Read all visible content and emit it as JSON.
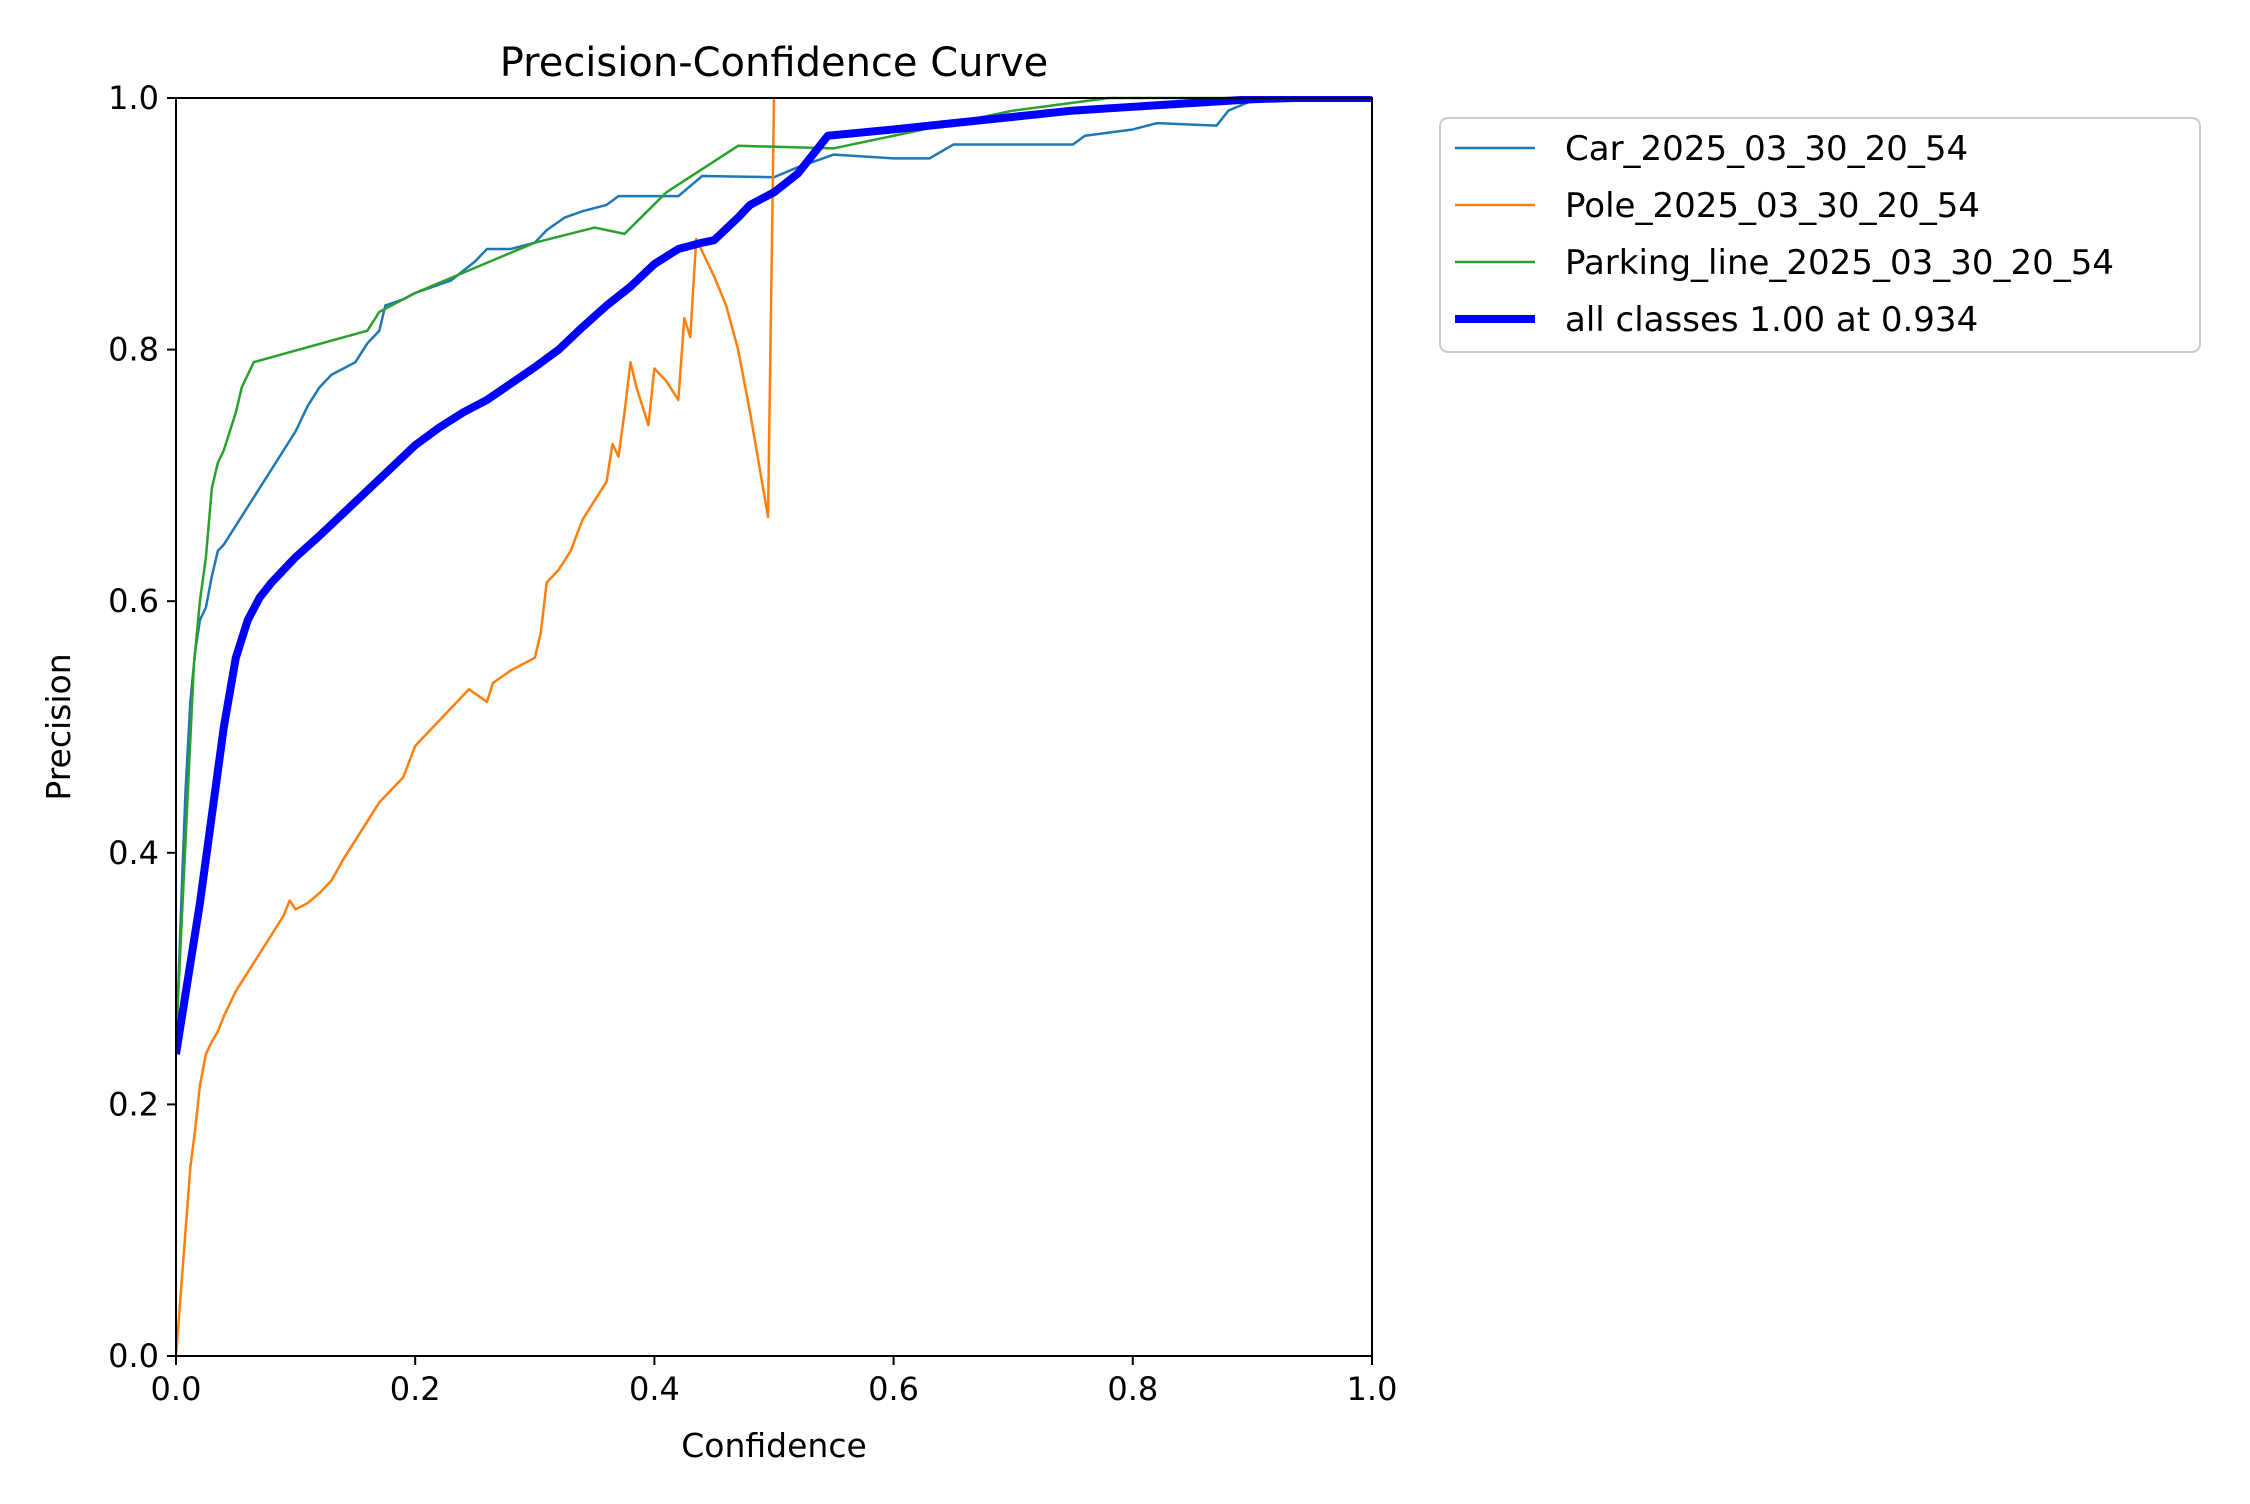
{
  "chart_data": {
    "type": "line",
    "title": "Precision-Confidence Curve",
    "xlabel": "Confidence",
    "ylabel": "Precision",
    "xlim": [
      0,
      1
    ],
    "ylim": [
      0,
      1
    ],
    "x_ticks": [
      "0.0",
      "0.2",
      "0.4",
      "0.6",
      "0.8",
      "1.0"
    ],
    "y_ticks": [
      "0.0",
      "0.2",
      "0.4",
      "0.6",
      "0.8",
      "1.0"
    ],
    "grid": false,
    "legend_position": "outside-top-right",
    "series": [
      {
        "name": "Car_2025_03_30_20_54",
        "color": "#1f77b4",
        "width": "thin",
        "points": [
          [
            0.0,
            0.24
          ],
          [
            0.004,
            0.35
          ],
          [
            0.008,
            0.45
          ],
          [
            0.012,
            0.52
          ],
          [
            0.016,
            0.56
          ],
          [
            0.02,
            0.585
          ],
          [
            0.025,
            0.595
          ],
          [
            0.03,
            0.62
          ],
          [
            0.035,
            0.64
          ],
          [
            0.04,
            0.645
          ],
          [
            0.05,
            0.66
          ],
          [
            0.06,
            0.675
          ],
          [
            0.07,
            0.69
          ],
          [
            0.08,
            0.705
          ],
          [
            0.09,
            0.72
          ],
          [
            0.1,
            0.735
          ],
          [
            0.11,
            0.755
          ],
          [
            0.12,
            0.77
          ],
          [
            0.13,
            0.78
          ],
          [
            0.14,
            0.785
          ],
          [
            0.15,
            0.79
          ],
          [
            0.16,
            0.805
          ],
          [
            0.17,
            0.815
          ],
          [
            0.175,
            0.835
          ],
          [
            0.19,
            0.84
          ],
          [
            0.2,
            0.845
          ],
          [
            0.23,
            0.855
          ],
          [
            0.25,
            0.87
          ],
          [
            0.26,
            0.88
          ],
          [
            0.28,
            0.88
          ],
          [
            0.3,
            0.885
          ],
          [
            0.31,
            0.895
          ],
          [
            0.325,
            0.905
          ],
          [
            0.34,
            0.91
          ],
          [
            0.36,
            0.915
          ],
          [
            0.37,
            0.922
          ],
          [
            0.42,
            0.922
          ],
          [
            0.43,
            0.93
          ],
          [
            0.44,
            0.938
          ],
          [
            0.5,
            0.937
          ],
          [
            0.52,
            0.945
          ],
          [
            0.55,
            0.955
          ],
          [
            0.6,
            0.952
          ],
          [
            0.63,
            0.952
          ],
          [
            0.65,
            0.963
          ],
          [
            0.7,
            0.963
          ],
          [
            0.75,
            0.963
          ],
          [
            0.76,
            0.97
          ],
          [
            0.8,
            0.975
          ],
          [
            0.82,
            0.98
          ],
          [
            0.87,
            0.978
          ],
          [
            0.88,
            0.99
          ],
          [
            0.9,
            0.998
          ],
          [
            0.93,
            1.0
          ],
          [
            1.0,
            1.0
          ]
        ]
      },
      {
        "name": "Pole_2025_03_30_20_54",
        "color": "#ff7f0e",
        "width": "thin",
        "points": [
          [
            0.0,
            0.0
          ],
          [
            0.004,
            0.05
          ],
          [
            0.008,
            0.1
          ],
          [
            0.012,
            0.15
          ],
          [
            0.016,
            0.18
          ],
          [
            0.02,
            0.215
          ],
          [
            0.025,
            0.24
          ],
          [
            0.03,
            0.25
          ],
          [
            0.035,
            0.258
          ],
          [
            0.04,
            0.27
          ],
          [
            0.045,
            0.28
          ],
          [
            0.05,
            0.29
          ],
          [
            0.06,
            0.305
          ],
          [
            0.07,
            0.32
          ],
          [
            0.08,
            0.335
          ],
          [
            0.09,
            0.35
          ],
          [
            0.095,
            0.362
          ],
          [
            0.1,
            0.355
          ],
          [
            0.11,
            0.36
          ],
          [
            0.12,
            0.368
          ],
          [
            0.13,
            0.378
          ],
          [
            0.14,
            0.395
          ],
          [
            0.15,
            0.41
          ],
          [
            0.16,
            0.425
          ],
          [
            0.17,
            0.44
          ],
          [
            0.18,
            0.45
          ],
          [
            0.19,
            0.46
          ],
          [
            0.2,
            0.485
          ],
          [
            0.21,
            0.495
          ],
          [
            0.22,
            0.505
          ],
          [
            0.23,
            0.515
          ],
          [
            0.245,
            0.53
          ],
          [
            0.26,
            0.52
          ],
          [
            0.265,
            0.535
          ],
          [
            0.28,
            0.545
          ],
          [
            0.3,
            0.555
          ],
          [
            0.305,
            0.575
          ],
          [
            0.31,
            0.615
          ],
          [
            0.32,
            0.625
          ],
          [
            0.33,
            0.64
          ],
          [
            0.34,
            0.665
          ],
          [
            0.35,
            0.68
          ],
          [
            0.36,
            0.695
          ],
          [
            0.365,
            0.725
          ],
          [
            0.37,
            0.715
          ],
          [
            0.375,
            0.75
          ],
          [
            0.38,
            0.79
          ],
          [
            0.385,
            0.77
          ],
          [
            0.39,
            0.755
          ],
          [
            0.395,
            0.74
          ],
          [
            0.4,
            0.785
          ],
          [
            0.41,
            0.775
          ],
          [
            0.42,
            0.76
          ],
          [
            0.425,
            0.825
          ],
          [
            0.43,
            0.81
          ],
          [
            0.435,
            0.888
          ],
          [
            0.45,
            0.858
          ],
          [
            0.46,
            0.835
          ],
          [
            0.47,
            0.8
          ],
          [
            0.48,
            0.75
          ],
          [
            0.495,
            0.667
          ],
          [
            0.5,
            1.0
          ]
        ]
      },
      {
        "name": "Parking_line_2025_03_30_20_54",
        "color": "#2ca02c",
        "width": "thin",
        "points": [
          [
            0.0,
            0.25
          ],
          [
            0.005,
            0.35
          ],
          [
            0.01,
            0.45
          ],
          [
            0.015,
            0.55
          ],
          [
            0.02,
            0.6
          ],
          [
            0.025,
            0.635
          ],
          [
            0.03,
            0.69
          ],
          [
            0.035,
            0.71
          ],
          [
            0.04,
            0.72
          ],
          [
            0.045,
            0.735
          ],
          [
            0.05,
            0.75
          ],
          [
            0.055,
            0.77
          ],
          [
            0.065,
            0.79
          ],
          [
            0.16,
            0.815
          ],
          [
            0.17,
            0.83
          ],
          [
            0.2,
            0.845
          ],
          [
            0.3,
            0.885
          ],
          [
            0.35,
            0.897
          ],
          [
            0.375,
            0.892
          ],
          [
            0.41,
            0.925
          ],
          [
            0.47,
            0.962
          ],
          [
            0.55,
            0.96
          ],
          [
            0.6,
            0.97
          ],
          [
            0.65,
            0.98
          ],
          [
            0.7,
            0.99
          ],
          [
            0.78,
            1.0
          ],
          [
            1.0,
            1.0
          ]
        ]
      },
      {
        "name": "all classes 1.00 at 0.934",
        "color": "#0000ff",
        "width": "thick",
        "points": [
          [
            0.0,
            0.24
          ],
          [
            0.01,
            0.3
          ],
          [
            0.02,
            0.36
          ],
          [
            0.03,
            0.43
          ],
          [
            0.04,
            0.5
          ],
          [
            0.05,
            0.555
          ],
          [
            0.06,
            0.585
          ],
          [
            0.07,
            0.603
          ],
          [
            0.08,
            0.615
          ],
          [
            0.1,
            0.635
          ],
          [
            0.12,
            0.652
          ],
          [
            0.14,
            0.67
          ],
          [
            0.16,
            0.688
          ],
          [
            0.18,
            0.706
          ],
          [
            0.2,
            0.724
          ],
          [
            0.22,
            0.738
          ],
          [
            0.24,
            0.75
          ],
          [
            0.26,
            0.76
          ],
          [
            0.28,
            0.773
          ],
          [
            0.3,
            0.786
          ],
          [
            0.32,
            0.8
          ],
          [
            0.34,
            0.818
          ],
          [
            0.36,
            0.835
          ],
          [
            0.38,
            0.85
          ],
          [
            0.4,
            0.868
          ],
          [
            0.42,
            0.88
          ],
          [
            0.44,
            0.885
          ],
          [
            0.45,
            0.887
          ],
          [
            0.47,
            0.905
          ],
          [
            0.48,
            0.915
          ],
          [
            0.5,
            0.925
          ],
          [
            0.52,
            0.94
          ],
          [
            0.545,
            0.97
          ],
          [
            0.6,
            0.975
          ],
          [
            0.65,
            0.98
          ],
          [
            0.7,
            0.985
          ],
          [
            0.75,
            0.99
          ],
          [
            0.8,
            0.993
          ],
          [
            0.85,
            0.996
          ],
          [
            0.9,
            0.999
          ],
          [
            0.934,
            1.0
          ],
          [
            1.0,
            1.0
          ]
        ]
      }
    ]
  }
}
